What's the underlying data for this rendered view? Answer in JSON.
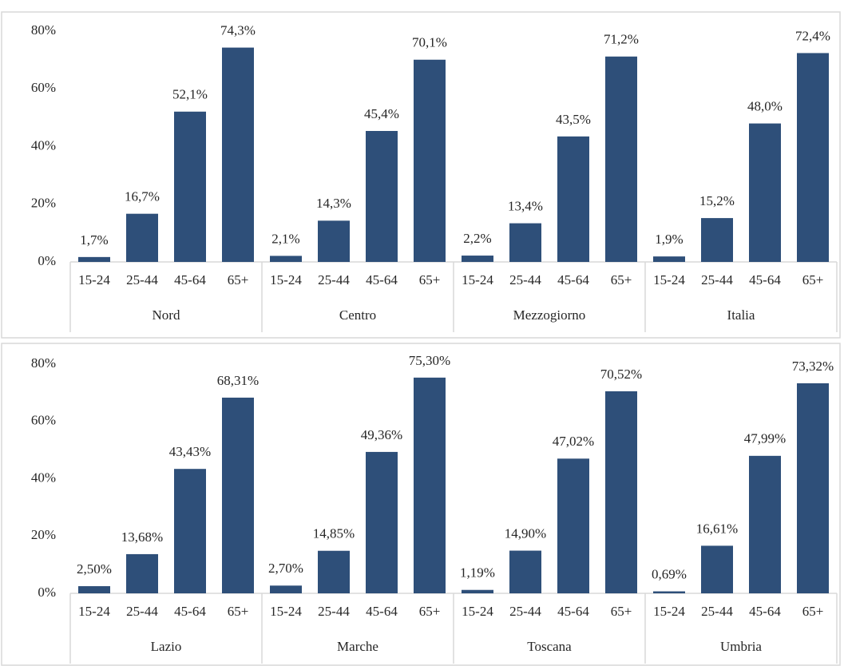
{
  "chart_data": [
    {
      "type": "bar",
      "categories": [
        "15-24",
        "25-44",
        "45-64",
        "65+"
      ],
      "ylim": [
        0,
        80
      ],
      "yticks": [
        {
          "value": 0,
          "label": "0%"
        },
        {
          "value": 20,
          "label": "20%"
        },
        {
          "value": 40,
          "label": "40%"
        },
        {
          "value": 60,
          "label": "60%"
        },
        {
          "value": 80,
          "label": "80%"
        }
      ],
      "series": [
        {
          "name": "Nord",
          "color": "#2e4f79",
          "values": [
            1.7,
            16.7,
            52.1,
            74.3
          ],
          "value_labels": [
            "1,7%",
            "16,7%",
            "52,1%",
            "74,3%"
          ]
        },
        {
          "name": "Centro",
          "color": "#2e4f79",
          "values": [
            2.1,
            14.3,
            45.4,
            70.1
          ],
          "value_labels": [
            "2,1%",
            "14,3%",
            "45,4%",
            "70,1%"
          ]
        },
        {
          "name": "Mezzogiorno",
          "color": "#2e4f79",
          "values": [
            2.2,
            13.4,
            43.5,
            71.2
          ],
          "value_labels": [
            "2,2%",
            "13,4%",
            "43,5%",
            "71,2%"
          ]
        },
        {
          "name": "Italia",
          "color": "#2e4f79",
          "values": [
            1.9,
            15.2,
            48.0,
            72.4
          ],
          "value_labels": [
            "1,9%",
            "15,2%",
            "48,0%",
            "72,4%"
          ]
        }
      ]
    },
    {
      "type": "bar",
      "categories": [
        "15-24",
        "25-44",
        "45-64",
        "65+"
      ],
      "ylim": [
        0,
        80
      ],
      "yticks": [
        {
          "value": 0,
          "label": "0%"
        },
        {
          "value": 20,
          "label": "20%"
        },
        {
          "value": 40,
          "label": "40%"
        },
        {
          "value": 60,
          "label": "60%"
        },
        {
          "value": 80,
          "label": "80%"
        }
      ],
      "series": [
        {
          "name": "Lazio",
          "color": "#2e4f79",
          "values": [
            2.5,
            13.68,
            43.43,
            68.31
          ],
          "value_labels": [
            "2,50%",
            "13,68%",
            "43,43%",
            "68,31%"
          ]
        },
        {
          "name": "Marche",
          "color": "#2e4f79",
          "values": [
            2.7,
            14.85,
            49.36,
            75.3
          ],
          "value_labels": [
            "2,70%",
            "14,85%",
            "49,36%",
            "75,30%"
          ]
        },
        {
          "name": "Toscana",
          "color": "#2e4f79",
          "values": [
            1.19,
            14.9,
            47.02,
            70.52
          ],
          "value_labels": [
            "1,19%",
            "14,90%",
            "47,02%",
            "70,52%"
          ]
        },
        {
          "name": "Umbria",
          "color": "#2e4f79",
          "values": [
            0.69,
            16.61,
            47.99,
            73.32
          ],
          "value_labels": [
            "0,69%",
            "16,61%",
            "47,99%",
            "73,32%"
          ]
        }
      ]
    }
  ]
}
